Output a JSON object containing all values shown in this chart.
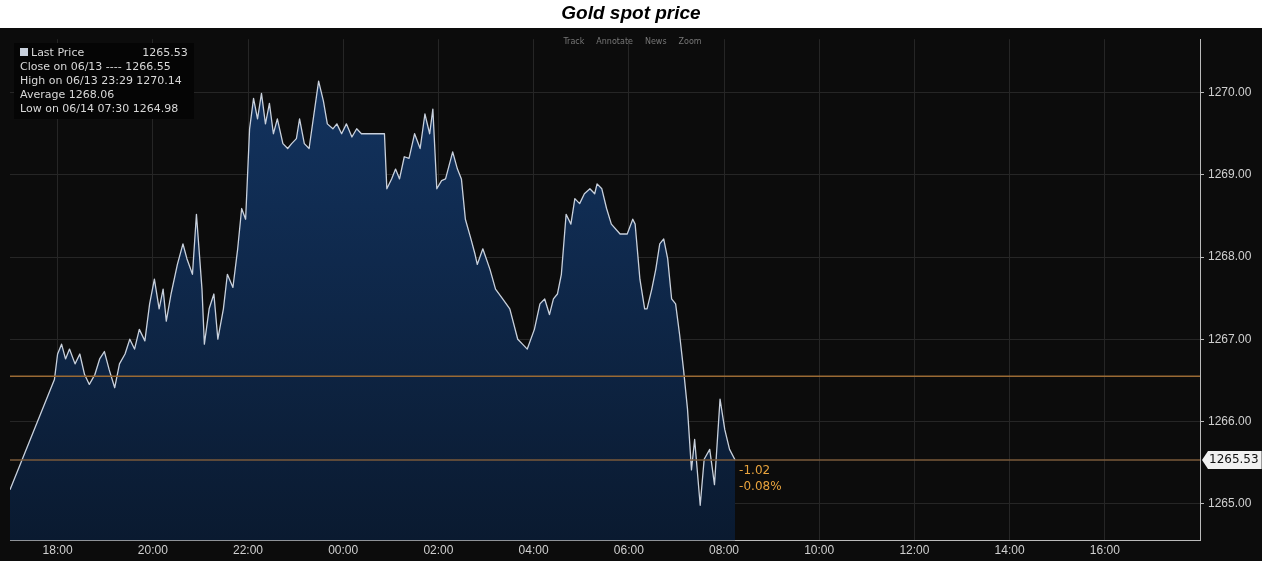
{
  "chart_data": {
    "type": "area",
    "title": "Gold spot price",
    "x": [
      "--06-13T17:00",
      "--06-13T17:56",
      "--06-13T18:00",
      "--06-13T18:05",
      "--06-13T18:10",
      "--06-13T18:15",
      "--06-13T18:22",
      "--06-13T18:28",
      "--06-13T18:34",
      "--06-13T18:40",
      "--06-13T18:47",
      "--06-13T18:53",
      "--06-13T18:59",
      "--06-13T19:05",
      "--06-13T19:12",
      "--06-13T19:18",
      "--06-13T19:25",
      "--06-13T19:31",
      "--06-13T19:37",
      "--06-13T19:43",
      "--06-13T19:50",
      "--06-13T19:56",
      "--06-13T20:02",
      "--06-13T20:08",
      "--06-13T20:13",
      "--06-13T20:17",
      "--06-13T20:23",
      "--06-13T20:31",
      "--06-13T20:38",
      "--06-13T20:43",
      "--06-13T20:50",
      "--06-13T20:55",
      "--06-13T21:02",
      "--06-13T21:05",
      "--06-13T21:11",
      "--06-13T21:17",
      "--06-13T21:22",
      "--06-13T21:29",
      "--06-13T21:34",
      "--06-13T21:41",
      "--06-13T21:47",
      "--06-13T21:52",
      "--06-13T21:57",
      "--06-13T22:02",
      "--06-13T22:07",
      "--06-13T22:12",
      "--06-13T22:17",
      "--06-13T22:22",
      "--06-13T22:27",
      "--06-13T22:32",
      "--06-13T22:37",
      "--06-13T22:44",
      "--06-13T22:50",
      "--06-13T22:55",
      "--06-13T23:01",
      "--06-13T23:05",
      "--06-13T23:11",
      "--06-13T23:17",
      "--06-13T23:29",
      "--06-13T23:35",
      "--06-13T23:40",
      "--06-13T23:47",
      "--06-13T23:52",
      "--06-13T23:58",
      "--06-14T00:04",
      "--06-14T00:11",
      "--06-14T00:17",
      "--06-14T00:23",
      "--06-14T00:52",
      "--06-14T00:55",
      "--06-14T01:01",
      "--06-14T01:06",
      "--06-14T01:11",
      "--06-14T01:17",
      "--06-14T01:23",
      "--06-14T01:30",
      "--06-14T01:37",
      "--06-14T01:43",
      "--06-14T01:49",
      "--06-14T01:53",
      "--06-14T01:58",
      "--06-14T02:04",
      "--06-14T02:09",
      "--06-14T02:18",
      "--06-14T02:24",
      "--06-14T02:29",
      "--06-14T02:34",
      "--06-14T02:41",
      "--06-14T02:46",
      "--06-14T02:49",
      "--06-14T02:56",
      "--06-14T03:05",
      "--06-14T03:12",
      "--06-14T03:21",
      "--06-14T03:30",
      "--06-14T03:40",
      "--06-14T03:46",
      "--06-14T03:52",
      "--06-14T04:01",
      "--06-14T04:08",
      "--06-14T04:14",
      "--06-14T04:20",
      "--06-14T04:25",
      "--06-14T04:30",
      "--06-14T04:35",
      "--06-14T04:41",
      "--06-14T04:47",
      "--06-14T04:52",
      "--06-14T04:58",
      "--06-14T05:04",
      "--06-14T05:11",
      "--06-14T05:17",
      "--06-14T05:20",
      "--06-14T05:26",
      "--06-14T05:32",
      "--06-14T05:38",
      "--06-14T05:49",
      "--06-14T05:58",
      "--06-14T06:05",
      "--06-14T06:08",
      "--06-14T06:14",
      "--06-14T06:20",
      "--06-14T06:23",
      "--06-14T06:29",
      "--06-14T06:34",
      "--06-14T06:39",
      "--06-14T06:44",
      "--06-14T06:49",
      "--06-14T06:54",
      "--06-14T06:59",
      "--06-14T07:04",
      "--06-14T07:09",
      "--06-14T07:14",
      "--06-14T07:19",
      "--06-14T07:23",
      "--06-14T07:30",
      "--06-14T07:35",
      "--06-14T07:42",
      "--06-14T07:48",
      "--06-14T07:55",
      "--06-14T08:01",
      "--06-14T08:07",
      "--06-14T08:14"
    ],
    "series": [
      {
        "name": "Last Price",
        "color": "#c8d0dc",
        "values": [
          1265.17,
          1266.51,
          1266.82,
          1266.94,
          1266.76,
          1266.88,
          1266.7,
          1266.82,
          1266.57,
          1266.45,
          1266.57,
          1266.76,
          1266.85,
          1266.63,
          1266.41,
          1266.7,
          1266.82,
          1267.0,
          1266.88,
          1267.12,
          1266.98,
          1267.43,
          1267.73,
          1267.37,
          1267.61,
          1267.22,
          1267.55,
          1267.91,
          1268.16,
          1267.98,
          1267.79,
          1268.52,
          1267.61,
          1266.94,
          1267.37,
          1267.55,
          1267.0,
          1267.37,
          1267.79,
          1267.63,
          1268.1,
          1268.59,
          1268.46,
          1269.56,
          1269.93,
          1269.68,
          1269.99,
          1269.62,
          1269.87,
          1269.5,
          1269.68,
          1269.38,
          1269.32,
          1269.38,
          1269.44,
          1269.68,
          1269.38,
          1269.32,
          1270.14,
          1269.9,
          1269.62,
          1269.56,
          1269.62,
          1269.5,
          1269.62,
          1269.46,
          1269.56,
          1269.5,
          1269.5,
          1268.83,
          1268.95,
          1269.07,
          1268.95,
          1269.22,
          1269.2,
          1269.5,
          1269.32,
          1269.74,
          1269.5,
          1269.8,
          1268.83,
          1268.93,
          1268.95,
          1269.28,
          1269.07,
          1268.95,
          1268.46,
          1268.22,
          1268.04,
          1267.91,
          1268.1,
          1267.85,
          1267.61,
          1267.49,
          1267.37,
          1267.0,
          1266.94,
          1266.88,
          1267.12,
          1267.43,
          1267.49,
          1267.3,
          1267.49,
          1267.55,
          1267.79,
          1268.52,
          1268.4,
          1268.71,
          1268.65,
          1268.77,
          1268.83,
          1268.77,
          1268.89,
          1268.83,
          1268.59,
          1268.4,
          1268.28,
          1268.28,
          1268.46,
          1268.4,
          1267.73,
          1267.37,
          1267.37,
          1267.61,
          1267.85,
          1268.16,
          1268.22,
          1267.98,
          1267.49,
          1267.43,
          1267.06,
          1266.63,
          1266.15,
          1265.41,
          1265.78,
          1264.98,
          1265.54,
          1265.66,
          1265.23,
          1266.27,
          1265.9,
          1265.66,
          1265.53
        ]
      }
    ],
    "xlim": [
      "--06-13T17:00",
      "--06-14T18:00"
    ],
    "xticks": [
      {
        "value": "--06-13T18:00",
        "label": "18:00"
      },
      {
        "value": "--06-13T20:00",
        "label": "20:00"
      },
      {
        "value": "--06-13T22:00",
        "label": "22:00"
      },
      {
        "value": "--06-14T00:00",
        "label": "00:00"
      },
      {
        "value": "--06-14T02:00",
        "label": "02:00"
      },
      {
        "value": "--06-14T04:00",
        "label": "04:00"
      },
      {
        "value": "--06-14T06:00",
        "label": "06:00"
      },
      {
        "value": "--06-14T08:00",
        "label": "08:00"
      },
      {
        "value": "--06-14T10:00",
        "label": "10:00"
      },
      {
        "value": "--06-14T12:00",
        "label": "12:00"
      },
      {
        "value": "--06-14T14:00",
        "label": "14:00"
      },
      {
        "value": "--06-14T16:00",
        "label": "16:00"
      }
    ],
    "ylim": [
      1264.55,
      1270.65
    ],
    "yticks": [
      {
        "value": 1265,
        "label": "1265.00"
      },
      {
        "value": 1266,
        "label": "1266.00"
      },
      {
        "value": 1267,
        "label": "1267.00"
      },
      {
        "value": 1268,
        "label": "1268.00"
      },
      {
        "value": 1269,
        "label": "1269.00"
      },
      {
        "value": 1270,
        "label": "1270.00"
      }
    ],
    "ref_lines": [
      {
        "axis": "y",
        "value": 1266.55,
        "color": "#9a6a34"
      },
      {
        "axis": "y",
        "value": 1265.53,
        "label": "1265.53",
        "color": "#7a5a3a"
      }
    ],
    "annotations": [
      "1265.53",
      "Close on 06/13 ---- 1266.55",
      "High on 06/13 23:29 1270.14",
      "Average 1268.06",
      "Low on 06/14 07:30 1264.98",
      "Track",
      "Annotate",
      "News",
      "Zoom",
      {
        "text": "-1.02",
        "x": "--06-14T08:14",
        "y": 1265.4
      },
      {
        "text": "-0.08%",
        "x": "--06-14T08:14",
        "y": 1265.2
      }
    ],
    "grid": true,
    "legend": "top left"
  }
}
